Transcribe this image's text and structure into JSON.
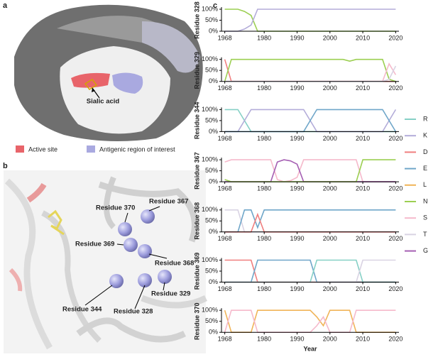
{
  "panel_a": {
    "label": "a",
    "annotation": "Sialic acid",
    "legend": [
      {
        "name": "Active site",
        "color": "#e8646a"
      },
      {
        "name": "Antigenic region of interest",
        "color": "#a9a9e0"
      }
    ]
  },
  "panel_b": {
    "label": "b",
    "residues": [
      "Residue 370",
      "Residue 367",
      "Residue 369",
      "Residue 368",
      "Residue 344",
      "Residue 328",
      "Residue 329"
    ]
  },
  "panel_c": {
    "label": "c",
    "legend": [
      {
        "name": "R",
        "color": "#86d0c6"
      },
      {
        "name": "K",
        "color": "#b3acd9"
      },
      {
        "name": "D",
        "color": "#f07f7f"
      },
      {
        "name": "E",
        "color": "#6fa6c9"
      },
      {
        "name": "L",
        "color": "#f0b458"
      },
      {
        "name": "N",
        "color": "#9ccf52"
      },
      {
        "name": "S",
        "color": "#f5b9cb"
      },
      {
        "name": "T",
        "color": "#d9d3e3"
      },
      {
        "name": "G",
        "color": "#a55fb3"
      }
    ]
  },
  "chart_data": [
    {
      "type": "line",
      "ylabel": "Residue 328",
      "x": [
        1968,
        1970,
        1972,
        1974,
        1976,
        1978,
        1980,
        1982,
        1984,
        1986,
        1988,
        1990,
        1992,
        1994,
        1996,
        1998,
        2000,
        2002,
        2004,
        2006,
        2008,
        2010,
        2012,
        2014,
        2016,
        2018,
        2020
      ],
      "xlim": [
        1967,
        2021
      ],
      "ylim": [
        0,
        100
      ],
      "xticks": [
        1968,
        1980,
        1990,
        2000,
        2010,
        2020
      ],
      "yticks": [
        {
          "value": 0,
          "label": "0%"
        },
        {
          "value": 50,
          "label": "50%"
        },
        {
          "value": 100,
          "label": "100%"
        }
      ],
      "series": [
        {
          "name": "N",
          "color": "#9ccf52",
          "values": [
            100,
            100,
            100,
            90,
            72,
            0,
            0,
            0,
            0,
            0,
            0,
            0,
            0,
            0,
            0,
            0,
            0,
            0,
            0,
            0,
            0,
            0,
            0,
            0,
            0,
            0,
            0
          ]
        },
        {
          "name": "K",
          "color": "#b3acd9",
          "values": [
            0,
            0,
            0,
            10,
            28,
            100,
            100,
            100,
            100,
            100,
            100,
            100,
            100,
            100,
            100,
            100,
            100,
            100,
            100,
            100,
            100,
            100,
            100,
            100,
            100,
            100,
            100
          ]
        }
      ]
    },
    {
      "type": "line",
      "ylabel": "Residue 329",
      "x": [
        1968,
        1970,
        1972,
        1974,
        1976,
        1978,
        1980,
        1982,
        1984,
        1986,
        1988,
        1990,
        1992,
        1994,
        1996,
        1998,
        2000,
        2002,
        2004,
        2006,
        2008,
        2010,
        2012,
        2014,
        2016,
        2018,
        2020
      ],
      "xlim": [
        1967,
        2021
      ],
      "ylim": [
        0,
        100
      ],
      "xticks": [
        1968,
        1980,
        1990,
        2000,
        2010,
        2020
      ],
      "yticks": [
        {
          "value": 0,
          "label": "0%"
        },
        {
          "value": 50,
          "label": "50%"
        },
        {
          "value": 100,
          "label": "100%"
        }
      ],
      "series": [
        {
          "name": "D",
          "color": "#f07f7f",
          "values": [
            100,
            0,
            0,
            0,
            0,
            0,
            0,
            0,
            0,
            0,
            0,
            0,
            0,
            0,
            0,
            0,
            0,
            0,
            0,
            0,
            0,
            0,
            0,
            0,
            0,
            0,
            0
          ]
        },
        {
          "name": "N",
          "color": "#9ccf52",
          "values": [
            0,
            100,
            100,
            100,
            100,
            100,
            100,
            100,
            100,
            100,
            100,
            100,
            100,
            100,
            100,
            100,
            100,
            100,
            100,
            92,
            100,
            100,
            100,
            100,
            100,
            10,
            0
          ]
        },
        {
          "name": "S",
          "color": "#f5b9cb",
          "values": [
            0,
            0,
            0,
            0,
            0,
            0,
            0,
            0,
            0,
            0,
            0,
            0,
            0,
            0,
            0,
            0,
            0,
            0,
            0,
            0,
            0,
            0,
            0,
            0,
            0,
            80,
            30
          ]
        },
        {
          "name": "T",
          "color": "#d9d3e3",
          "values": [
            0,
            0,
            0,
            0,
            0,
            0,
            0,
            0,
            0,
            0,
            0,
            0,
            0,
            0,
            0,
            0,
            0,
            0,
            0,
            0,
            0,
            0,
            0,
            0,
            0,
            10,
            70
          ]
        }
      ]
    },
    {
      "type": "line",
      "ylabel": "Residue 344",
      "x": [
        1968,
        1970,
        1972,
        1974,
        1976,
        1978,
        1980,
        1982,
        1984,
        1986,
        1988,
        1990,
        1992,
        1994,
        1996,
        1998,
        2000,
        2002,
        2004,
        2006,
        2008,
        2010,
        2012,
        2014,
        2016,
        2018,
        2020
      ],
      "xlim": [
        1967,
        2021
      ],
      "ylim": [
        0,
        100
      ],
      "xticks": [
        1968,
        1980,
        1990,
        2000,
        2010,
        2020
      ],
      "yticks": [
        {
          "value": 0,
          "label": "0%"
        },
        {
          "value": 50,
          "label": "50%"
        },
        {
          "value": 100,
          "label": "100%"
        }
      ],
      "series": [
        {
          "name": "R",
          "color": "#86d0c6",
          "values": [
            100,
            100,
            100,
            50,
            0,
            0,
            0,
            0,
            0,
            0,
            0,
            0,
            0,
            0,
            0,
            0,
            0,
            0,
            0,
            0,
            0,
            0,
            0,
            0,
            0,
            0,
            0
          ]
        },
        {
          "name": "K",
          "color": "#b3acd9",
          "values": [
            0,
            0,
            0,
            50,
            100,
            100,
            100,
            100,
            100,
            100,
            100,
            100,
            100,
            50,
            0,
            0,
            0,
            0,
            0,
            0,
            0,
            0,
            0,
            0,
            0,
            50,
            100
          ]
        },
        {
          "name": "E",
          "color": "#6fa6c9",
          "values": [
            0,
            0,
            0,
            0,
            0,
            0,
            0,
            0,
            0,
            0,
            0,
            0,
            0,
            50,
            100,
            100,
            100,
            100,
            100,
            100,
            100,
            100,
            100,
            100,
            100,
            50,
            0
          ]
        }
      ]
    },
    {
      "type": "line",
      "ylabel": "Residue 367",
      "x": [
        1968,
        1970,
        1972,
        1974,
        1976,
        1978,
        1980,
        1982,
        1984,
        1986,
        1988,
        1990,
        1992,
        1994,
        1996,
        1998,
        2000,
        2002,
        2004,
        2006,
        2008,
        2010,
        2012,
        2014,
        2016,
        2018,
        2020
      ],
      "xlim": [
        1967,
        2021
      ],
      "ylim": [
        0,
        100
      ],
      "xticks": [
        1968,
        1980,
        1990,
        2000,
        2010,
        2020
      ],
      "yticks": [
        {
          "value": 0,
          "label": "0%"
        },
        {
          "value": 50,
          "label": "50%"
        },
        {
          "value": 100,
          "label": "100%"
        }
      ],
      "series": [
        {
          "name": "S",
          "color": "#f5b9cb",
          "values": [
            90,
            100,
            100,
            100,
            100,
            100,
            100,
            100,
            10,
            0,
            5,
            20,
            100,
            100,
            100,
            100,
            100,
            100,
            100,
            100,
            100,
            0,
            0,
            0,
            0,
            0,
            0
          ]
        },
        {
          "name": "G",
          "color": "#a55fb3",
          "values": [
            0,
            0,
            0,
            0,
            0,
            0,
            0,
            0,
            90,
            100,
            95,
            80,
            0,
            0,
            0,
            0,
            0,
            0,
            0,
            0,
            0,
            0,
            0,
            0,
            0,
            0,
            0
          ]
        },
        {
          "name": "N",
          "color": "#9ccf52",
          "values": [
            10,
            0,
            0,
            0,
            0,
            0,
            0,
            0,
            0,
            0,
            0,
            0,
            0,
            0,
            0,
            0,
            0,
            0,
            0,
            0,
            0,
            100,
            100,
            100,
            100,
            100,
            100
          ]
        }
      ]
    },
    {
      "type": "line",
      "ylabel": "Residue 368",
      "x": [
        1968,
        1970,
        1972,
        1974,
        1976,
        1978,
        1980,
        1982,
        1984,
        1986,
        1988,
        1990,
        1992,
        1994,
        1996,
        1998,
        2000,
        2002,
        2004,
        2006,
        2008,
        2010,
        2012,
        2014,
        2016,
        2018,
        2020
      ],
      "xlim": [
        1967,
        2021
      ],
      "ylim": [
        0,
        100
      ],
      "xticks": [
        1968,
        1980,
        1990,
        2000,
        2010,
        2020
      ],
      "yticks": [
        {
          "value": 0,
          "label": "0%"
        },
        {
          "value": 50,
          "label": "50%"
        },
        {
          "value": 100,
          "label": "100%"
        }
      ],
      "series": [
        {
          "name": "T",
          "color": "#d9d3e3",
          "values": [
            100,
            100,
            100,
            0,
            0,
            0,
            0,
            0,
            0,
            0,
            0,
            0,
            0,
            0,
            0,
            0,
            0,
            0,
            0,
            0,
            0,
            0,
            0,
            0,
            0,
            0,
            0
          ]
        },
        {
          "name": "E",
          "color": "#6fa6c9",
          "values": [
            0,
            0,
            0,
            100,
            100,
            20,
            100,
            100,
            100,
            100,
            100,
            100,
            100,
            100,
            100,
            100,
            100,
            100,
            100,
            100,
            100,
            100,
            100,
            100,
            100,
            100,
            100
          ]
        },
        {
          "name": "D",
          "color": "#f07f7f",
          "values": [
            0,
            0,
            0,
            0,
            0,
            80,
            0,
            0,
            0,
            0,
            0,
            0,
            0,
            0,
            0,
            0,
            0,
            0,
            0,
            0,
            0,
            0,
            0,
            0,
            0,
            0,
            0
          ]
        }
      ]
    },
    {
      "type": "line",
      "ylabel": "Residue 369",
      "x": [
        1968,
        1970,
        1972,
        1974,
        1976,
        1978,
        1980,
        1982,
        1984,
        1986,
        1988,
        1990,
        1992,
        1994,
        1996,
        1998,
        2000,
        2002,
        2004,
        2006,
        2008,
        2010,
        2012,
        2014,
        2016,
        2018,
        2020
      ],
      "xlim": [
        1967,
        2021
      ],
      "ylim": [
        0,
        100
      ],
      "xticks": [
        1968,
        1980,
        1990,
        2000,
        2010,
        2020
      ],
      "yticks": [
        {
          "value": 0,
          "label": "0%"
        },
        {
          "value": 50,
          "label": "50%"
        },
        {
          "value": 100,
          "label": "100%"
        }
      ],
      "series": [
        {
          "name": "D",
          "color": "#f07f7f",
          "values": [
            100,
            100,
            100,
            100,
            100,
            0,
            0,
            0,
            0,
            0,
            0,
            0,
            0,
            0,
            0,
            0,
            0,
            0,
            0,
            0,
            0,
            0,
            0,
            0,
            0,
            0,
            0
          ]
        },
        {
          "name": "E",
          "color": "#6fa6c9",
          "values": [
            0,
            0,
            0,
            0,
            0,
            100,
            100,
            100,
            100,
            100,
            100,
            100,
            100,
            100,
            0,
            0,
            0,
            0,
            0,
            0,
            0,
            0,
            0,
            0,
            0,
            0,
            0
          ]
        },
        {
          "name": "R",
          "color": "#86d0c6",
          "values": [
            0,
            0,
            0,
            0,
            0,
            0,
            0,
            0,
            0,
            0,
            0,
            0,
            0,
            0,
            100,
            100,
            100,
            100,
            100,
            100,
            100,
            0,
            0,
            0,
            0,
            0,
            0
          ]
        },
        {
          "name": "T",
          "color": "#d9d3e3",
          "values": [
            0,
            0,
            0,
            0,
            0,
            0,
            0,
            0,
            0,
            0,
            0,
            0,
            0,
            0,
            0,
            0,
            0,
            0,
            0,
            0,
            0,
            100,
            100,
            100,
            100,
            100,
            100
          ]
        }
      ]
    },
    {
      "type": "line",
      "ylabel": "Residue 370",
      "xlabel": "Year",
      "x": [
        1968,
        1970,
        1972,
        1974,
        1976,
        1978,
        1980,
        1982,
        1984,
        1986,
        1988,
        1990,
        1992,
        1994,
        1996,
        1998,
        2000,
        2002,
        2004,
        2006,
        2008,
        2010,
        2012,
        2014,
        2016,
        2018,
        2020
      ],
      "xlim": [
        1967,
        2021
      ],
      "ylim": [
        0,
        100
      ],
      "xticks": [
        1968,
        1980,
        1990,
        2000,
        2010,
        2020
      ],
      "yticks": [
        {
          "value": 0,
          "label": "0%"
        },
        {
          "value": 50,
          "label": "50%"
        },
        {
          "value": 100,
          "label": "100%"
        }
      ],
      "series": [
        {
          "name": "L",
          "color": "#f0b458",
          "values": [
            100,
            0,
            0,
            0,
            0,
            100,
            100,
            100,
            100,
            100,
            100,
            100,
            100,
            100,
            70,
            30,
            100,
            100,
            100,
            100,
            0,
            0,
            0,
            0,
            0,
            0,
            0
          ]
        },
        {
          "name": "S",
          "color": "#f5b9cb",
          "values": [
            0,
            100,
            100,
            100,
            100,
            0,
            0,
            0,
            0,
            0,
            0,
            0,
            0,
            0,
            30,
            70,
            0,
            0,
            0,
            0,
            100,
            100,
            100,
            100,
            100,
            100,
            100
          ]
        }
      ]
    }
  ]
}
